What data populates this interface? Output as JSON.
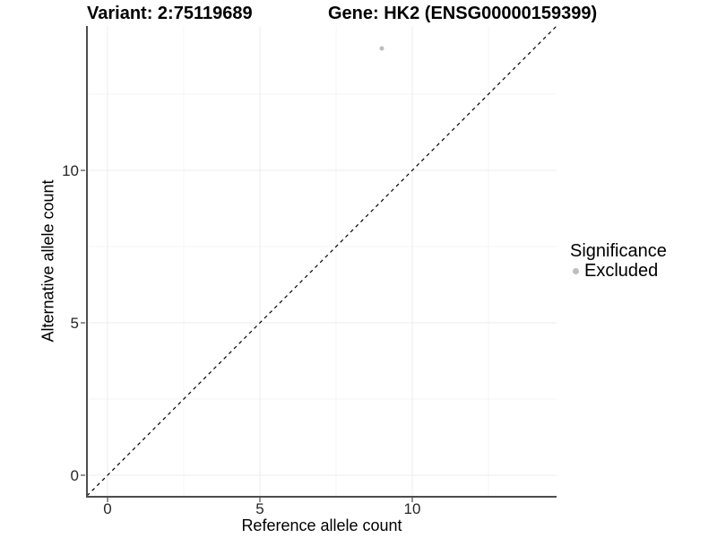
{
  "colors": {
    "background": "#ffffff",
    "point": "#bebebe",
    "axis": "#4d4d4d",
    "grid_major": "#ececec",
    "grid_minor": "#f4f4f4",
    "identity_line": "#000000",
    "tick_text": "#262626",
    "text": "#000000"
  },
  "chart_data": {
    "type": "scatter",
    "titles": {
      "left": "Variant: 2:75119689",
      "right": "Gene: HK2 (ENSG00000159399)"
    },
    "xlabel": "Reference allele count",
    "ylabel": "Alternative allele count",
    "xlim": [
      -0.7,
      14.7
    ],
    "ylim": [
      -0.7,
      14.7
    ],
    "x_ticks": [
      0,
      5,
      10
    ],
    "y_ticks": [
      0,
      5,
      10
    ],
    "x_minor_ticks": [
      2.5,
      7.5,
      12.5
    ],
    "y_minor_ticks": [
      2.5,
      7.5,
      12.5
    ],
    "grid": true,
    "identity_line": {
      "equation": "y = x",
      "style": "dashed"
    },
    "points": [
      {
        "x": 9,
        "y": 14,
        "series": "Excluded"
      }
    ],
    "legend": {
      "title": "Significance",
      "position": "right",
      "items": [
        {
          "label": "Excluded",
          "color": "#bebebe"
        }
      ]
    }
  }
}
